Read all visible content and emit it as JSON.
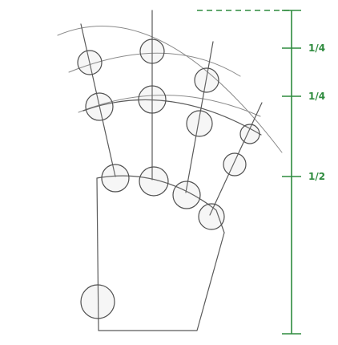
{
  "guide": {
    "color": "#2e8b3e",
    "labels": [
      "1/4",
      "1/4",
      "1/2"
    ]
  },
  "sketch": {
    "stroke_color": "#5a5a5a"
  }
}
